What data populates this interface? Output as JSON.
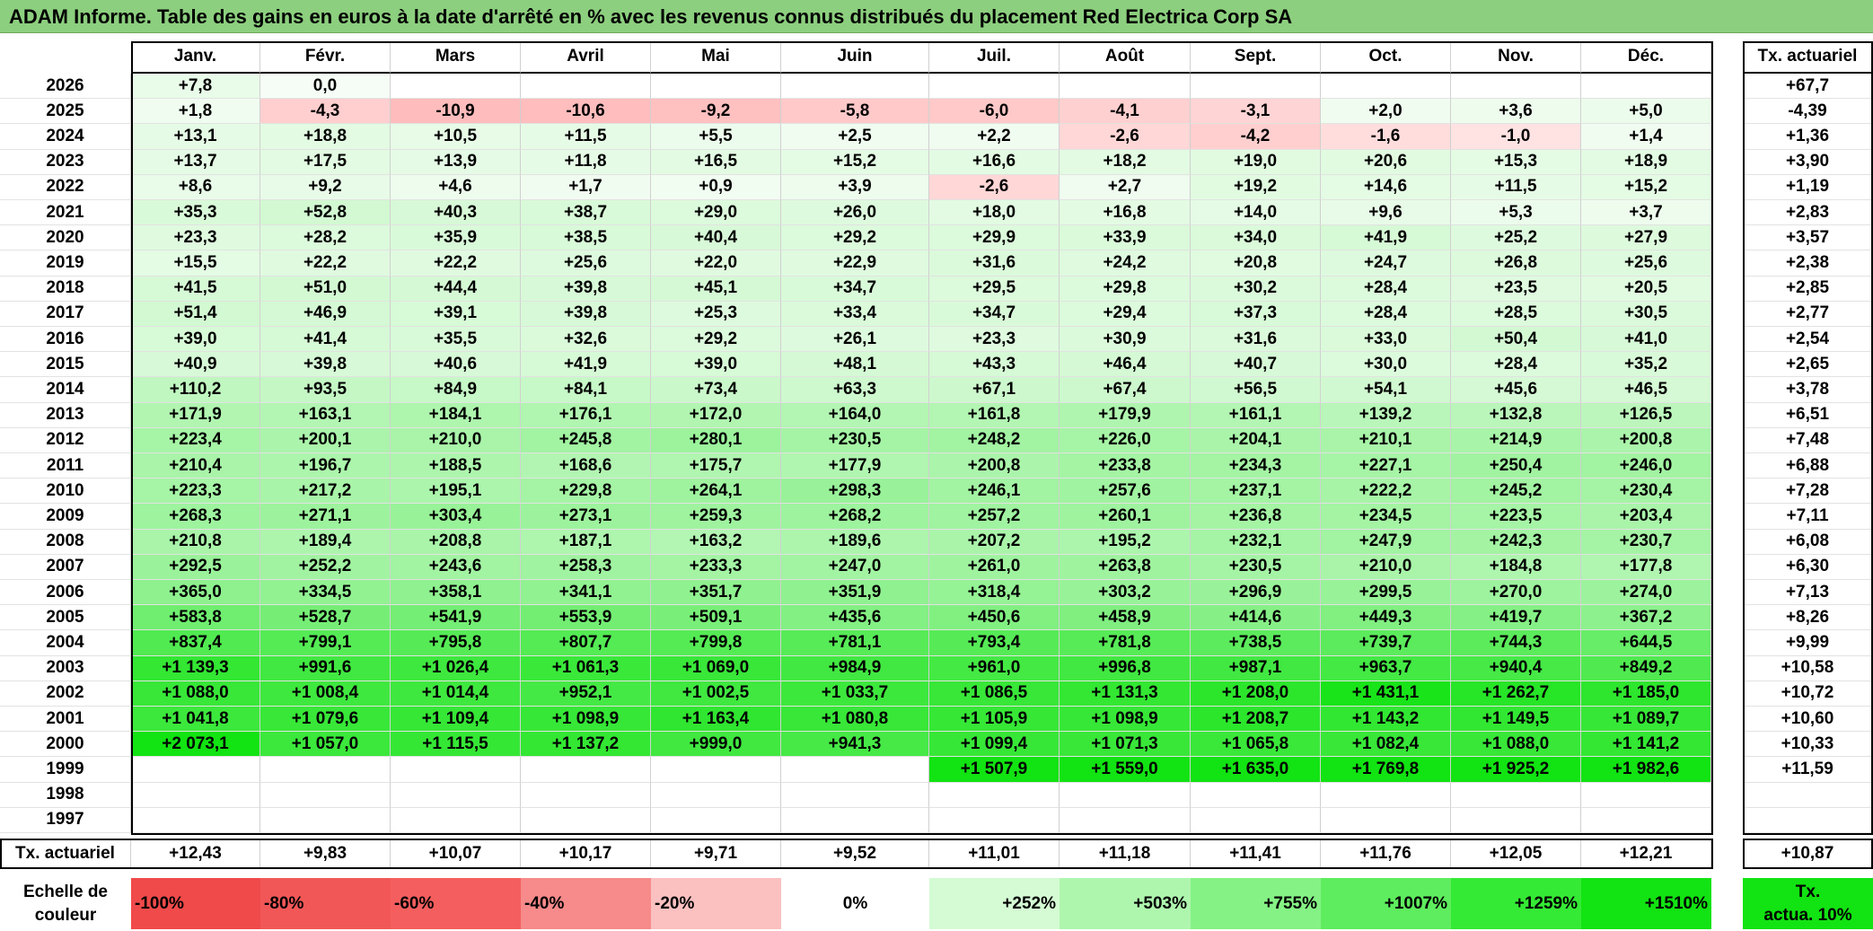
{
  "title": "ADAM Informe. Table des gains en euros à la date d'arrêté en % avec les revenus connus distribués du placement Red Electrica Corp SA",
  "months": [
    "Janv.",
    "Févr.",
    "Mars",
    "Avril",
    "Mai",
    "Juin",
    "Juil.",
    "Août",
    "Sept.",
    "Oct.",
    "Nov.",
    "Déc."
  ],
  "rate_header": "Tx. actuariel",
  "rows": [
    {
      "year": "2026",
      "vals": [
        "+7,8",
        "0,0",
        "",
        "",
        "",
        "",
        "",
        "",
        "",
        "",
        "",
        ""
      ],
      "rate": "+67,7"
    },
    {
      "year": "2025",
      "vals": [
        "+1,8",
        "-4,3",
        "-10,9",
        "-10,6",
        "-9,2",
        "-5,8",
        "-6,0",
        "-4,1",
        "-3,1",
        "+2,0",
        "+3,6",
        "+5,0"
      ],
      "rate": "-4,39"
    },
    {
      "year": "2024",
      "vals": [
        "+13,1",
        "+18,8",
        "+10,5",
        "+11,5",
        "+5,5",
        "+2,5",
        "+2,2",
        "-2,6",
        "-4,2",
        "-1,6",
        "-1,0",
        "+1,4"
      ],
      "rate": "+1,36"
    },
    {
      "year": "2023",
      "vals": [
        "+13,7",
        "+17,5",
        "+13,9",
        "+11,8",
        "+16,5",
        "+15,2",
        "+16,6",
        "+18,2",
        "+19,0",
        "+20,6",
        "+15,3",
        "+18,9"
      ],
      "rate": "+3,90"
    },
    {
      "year": "2022",
      "vals": [
        "+8,6",
        "+9,2",
        "+4,6",
        "+1,7",
        "+0,9",
        "+3,9",
        "-2,6",
        "+2,7",
        "+19,2",
        "+14,6",
        "+11,5",
        "+15,2"
      ],
      "rate": "+1,19"
    },
    {
      "year": "2021",
      "vals": [
        "+35,3",
        "+52,8",
        "+40,3",
        "+38,7",
        "+29,0",
        "+26,0",
        "+18,0",
        "+16,8",
        "+14,0",
        "+9,6",
        "+5,3",
        "+3,7"
      ],
      "rate": "+2,83"
    },
    {
      "year": "2020",
      "vals": [
        "+23,3",
        "+28,2",
        "+35,9",
        "+38,5",
        "+40,4",
        "+29,2",
        "+29,9",
        "+33,9",
        "+34,0",
        "+41,9",
        "+25,2",
        "+27,9"
      ],
      "rate": "+3,57"
    },
    {
      "year": "2019",
      "vals": [
        "+15,5",
        "+22,2",
        "+22,2",
        "+25,6",
        "+22,0",
        "+22,9",
        "+31,6",
        "+24,2",
        "+20,8",
        "+24,7",
        "+26,8",
        "+25,6"
      ],
      "rate": "+2,38"
    },
    {
      "year": "2018",
      "vals": [
        "+41,5",
        "+51,0",
        "+44,4",
        "+39,8",
        "+45,1",
        "+34,7",
        "+29,5",
        "+29,8",
        "+30,2",
        "+28,4",
        "+23,5",
        "+20,5"
      ],
      "rate": "+2,85"
    },
    {
      "year": "2017",
      "vals": [
        "+51,4",
        "+46,9",
        "+39,1",
        "+39,8",
        "+25,3",
        "+33,4",
        "+34,7",
        "+29,4",
        "+37,3",
        "+28,4",
        "+28,5",
        "+30,5"
      ],
      "rate": "+2,77"
    },
    {
      "year": "2016",
      "vals": [
        "+39,0",
        "+41,4",
        "+35,5",
        "+32,6",
        "+29,2",
        "+26,1",
        "+23,3",
        "+30,9",
        "+31,6",
        "+33,0",
        "+50,4",
        "+41,0"
      ],
      "rate": "+2,54"
    },
    {
      "year": "2015",
      "vals": [
        "+40,9",
        "+39,8",
        "+40,6",
        "+41,9",
        "+39,0",
        "+48,1",
        "+43,3",
        "+46,4",
        "+40,7",
        "+30,0",
        "+28,4",
        "+35,2"
      ],
      "rate": "+2,65"
    },
    {
      "year": "2014",
      "vals": [
        "+110,2",
        "+93,5",
        "+84,9",
        "+84,1",
        "+73,4",
        "+63,3",
        "+67,1",
        "+67,4",
        "+56,5",
        "+54,1",
        "+45,6",
        "+46,5"
      ],
      "rate": "+3,78"
    },
    {
      "year": "2013",
      "vals": [
        "+171,9",
        "+163,1",
        "+184,1",
        "+176,1",
        "+172,0",
        "+164,0",
        "+161,8",
        "+179,9",
        "+161,1",
        "+139,2",
        "+132,8",
        "+126,5"
      ],
      "rate": "+6,51"
    },
    {
      "year": "2012",
      "vals": [
        "+223,4",
        "+200,1",
        "+210,0",
        "+245,8",
        "+280,1",
        "+230,5",
        "+248,2",
        "+226,0",
        "+204,1",
        "+210,1",
        "+214,9",
        "+200,8"
      ],
      "rate": "+7,48"
    },
    {
      "year": "2011",
      "vals": [
        "+210,4",
        "+196,7",
        "+188,5",
        "+168,6",
        "+175,7",
        "+177,9",
        "+200,8",
        "+233,8",
        "+234,3",
        "+227,1",
        "+250,4",
        "+246,0"
      ],
      "rate": "+6,88"
    },
    {
      "year": "2010",
      "vals": [
        "+223,3",
        "+217,2",
        "+195,1",
        "+229,8",
        "+264,1",
        "+298,3",
        "+246,1",
        "+257,6",
        "+237,1",
        "+222,2",
        "+245,2",
        "+230,4"
      ],
      "rate": "+7,28"
    },
    {
      "year": "2009",
      "vals": [
        "+268,3",
        "+271,1",
        "+303,4",
        "+273,1",
        "+259,3",
        "+268,2",
        "+257,2",
        "+260,1",
        "+236,8",
        "+234,5",
        "+223,5",
        "+203,4"
      ],
      "rate": "+7,11"
    },
    {
      "year": "2008",
      "vals": [
        "+210,8",
        "+189,4",
        "+208,8",
        "+187,1",
        "+163,2",
        "+189,6",
        "+207,2",
        "+195,2",
        "+232,1",
        "+247,9",
        "+242,3",
        "+230,7"
      ],
      "rate": "+6,08"
    },
    {
      "year": "2007",
      "vals": [
        "+292,5",
        "+252,2",
        "+243,6",
        "+258,3",
        "+233,3",
        "+247,0",
        "+261,0",
        "+263,8",
        "+230,5",
        "+210,0",
        "+184,8",
        "+177,8"
      ],
      "rate": "+6,30"
    },
    {
      "year": "2006",
      "vals": [
        "+365,0",
        "+334,5",
        "+358,1",
        "+341,1",
        "+351,7",
        "+351,9",
        "+318,4",
        "+303,2",
        "+296,9",
        "+299,5",
        "+270,0",
        "+274,0"
      ],
      "rate": "+7,13"
    },
    {
      "year": "2005",
      "vals": [
        "+583,8",
        "+528,7",
        "+541,9",
        "+553,9",
        "+509,1",
        "+435,6",
        "+450,6",
        "+458,9",
        "+414,6",
        "+449,3",
        "+419,7",
        "+367,2"
      ],
      "rate": "+8,26"
    },
    {
      "year": "2004",
      "vals": [
        "+837,4",
        "+799,1",
        "+795,8",
        "+807,7",
        "+799,8",
        "+781,1",
        "+793,4",
        "+781,8",
        "+738,5",
        "+739,7",
        "+744,3",
        "+644,5"
      ],
      "rate": "+9,99"
    },
    {
      "year": "2003",
      "vals": [
        "+1 139,3",
        "+991,6",
        "+1 026,4",
        "+1 061,3",
        "+1 069,0",
        "+984,9",
        "+961,0",
        "+996,8",
        "+987,1",
        "+963,7",
        "+940,4",
        "+849,2"
      ],
      "rate": "+10,58"
    },
    {
      "year": "2002",
      "vals": [
        "+1 088,0",
        "+1 008,4",
        "+1 014,4",
        "+952,1",
        "+1 002,5",
        "+1 033,7",
        "+1 086,5",
        "+1 131,3",
        "+1 208,0",
        "+1 431,1",
        "+1 262,7",
        "+1 185,0"
      ],
      "rate": "+10,72"
    },
    {
      "year": "2001",
      "vals": [
        "+1 041,8",
        "+1 079,6",
        "+1 109,4",
        "+1 098,9",
        "+1 163,4",
        "+1 080,8",
        "+1 105,9",
        "+1 098,9",
        "+1 208,7",
        "+1 143,2",
        "+1 149,5",
        "+1 089,7"
      ],
      "rate": "+10,60"
    },
    {
      "year": "2000",
      "vals": [
        "+2 073,1",
        "+1 057,0",
        "+1 115,5",
        "+1 137,2",
        "+999,0",
        "+941,3",
        "+1 099,4",
        "+1 071,3",
        "+1 065,8",
        "+1 082,4",
        "+1 088,0",
        "+1 141,2"
      ],
      "rate": "+10,33"
    },
    {
      "year": "1999",
      "vals": [
        "",
        "",
        "",
        "",
        "",
        "",
        "+1 507,9",
        "+1 559,0",
        "+1 635,0",
        "+1 769,8",
        "+1 925,2",
        "+1 982,6"
      ],
      "rate": "+11,59"
    },
    {
      "year": "1998",
      "vals": [
        "",
        "",
        "",
        "",
        "",
        "",
        "",
        "",
        "",
        "",
        "",
        ""
      ],
      "rate": ""
    },
    {
      "year": "1997",
      "vals": [
        "",
        "",
        "",
        "",
        "",
        "",
        "",
        "",
        "",
        "",
        "",
        ""
      ],
      "rate": ""
    }
  ],
  "footer": {
    "label": "Tx. actuariel",
    "vals": [
      "+12,43",
      "+9,83",
      "+10,07",
      "+10,17",
      "+9,71",
      "+9,52",
      "+11,01",
      "+11,18",
      "+11,41",
      "+11,76",
      "+12,05",
      "+12,21"
    ],
    "rate": "+10,87"
  },
  "scale": {
    "label_line1": "Echelle de",
    "label_line2": "couleur",
    "items": [
      {
        "text": "-100%",
        "color": "#f04a4a"
      },
      {
        "text": "-80%",
        "color": "#f25757"
      },
      {
        "text": "-60%",
        "color": "#f55e5e"
      },
      {
        "text": "-40%",
        "color": "#f78a8a"
      },
      {
        "text": "-20%",
        "color": "#fbc0c0"
      },
      {
        "text": "0%",
        "color": "#ffffff"
      },
      {
        "text": "+252%",
        "color": "#d4fbd4"
      },
      {
        "text": "+503%",
        "color": "#aef6ae"
      },
      {
        "text": "+755%",
        "color": "#85f285"
      },
      {
        "text": "+1007%",
        "color": "#5eed5e"
      },
      {
        "text": "+1259%",
        "color": "#35ea35"
      },
      {
        "text": "+1510%",
        "color": "#12e312"
      }
    ],
    "rate_line1": "Tx.",
    "rate_line2": "actua. 10%",
    "rate_color": "#12e312"
  }
}
